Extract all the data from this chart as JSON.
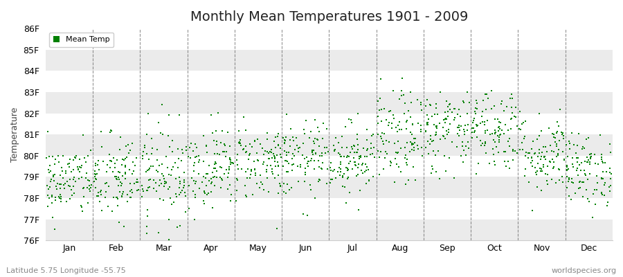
{
  "title": "Monthly Mean Temperatures 1901 - 2009",
  "ylabel": "Temperature",
  "subtitle": "Latitude 5.75 Longitude -55.75",
  "watermark": "worldspecies.org",
  "ylim": [
    76,
    86
  ],
  "yticks": [
    76,
    77,
    78,
    79,
    80,
    81,
    82,
    83,
    84,
    85,
    86
  ],
  "ytick_labels": [
    "76F",
    "77F",
    "78F",
    "79F",
    "80F",
    "81F",
    "82F",
    "83F",
    "84F",
    "85F",
    "86F"
  ],
  "months": [
    "Jan",
    "Feb",
    "Mar",
    "Apr",
    "May",
    "Jun",
    "Jul",
    "Aug",
    "Sep",
    "Oct",
    "Nov",
    "Dec"
  ],
  "n_years": 109,
  "seed": 42,
  "dot_color": "#008000",
  "dot_size": 3,
  "bg_color": "#FFFFFF",
  "band_light": "#EBEBEB",
  "band_dark": "#D8D8D8",
  "dashed_line_color": "#666666",
  "title_fontsize": 14,
  "label_fontsize": 9,
  "tick_fontsize": 9,
  "month_means": [
    78.8,
    78.9,
    79.2,
    79.5,
    79.7,
    79.8,
    79.9,
    80.8,
    81.2,
    81.3,
    80.1,
    79.3
  ],
  "month_stds": [
    0.85,
    1.05,
    1.15,
    0.95,
    0.9,
    0.9,
    0.85,
    1.1,
    1.0,
    1.0,
    0.95,
    0.85
  ]
}
